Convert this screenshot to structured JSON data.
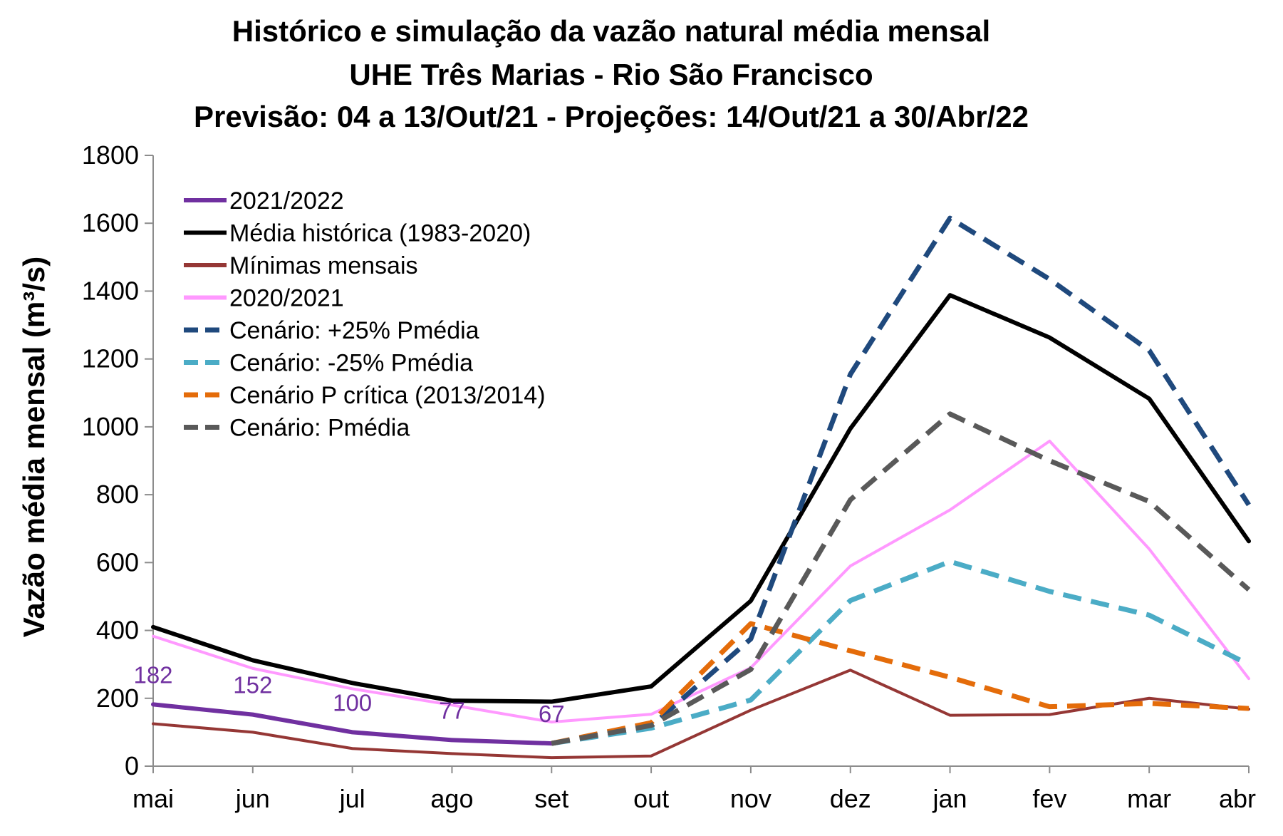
{
  "chart_data": {
    "type": "line",
    "title": [
      "Histórico e simulação da vazão natural média mensal",
      "UHE Três Marias - Rio São Francisco",
      "Previsão: 04 a 13/Out/21 - Projeções: 14/Out/21 a 30/Abr/22"
    ],
    "ylabel": "Vazão média mensal (m³/s)",
    "xlabel": "",
    "ylim": [
      0,
      1800
    ],
    "yticks": [
      0,
      200,
      400,
      600,
      800,
      1000,
      1200,
      1400,
      1600,
      1800
    ],
    "categories": [
      "mai",
      "jun",
      "jul",
      "ago",
      "set",
      "out",
      "nov",
      "dez",
      "jan",
      "fev",
      "mar",
      "abr"
    ],
    "legend_position": "top-left",
    "series": [
      {
        "name": "2021/2022",
        "color": "#7030A0",
        "dash": false,
        "width": 6,
        "values": [
          182,
          152,
          100,
          77,
          67,
          null,
          null,
          null,
          null,
          null,
          null,
          null
        ],
        "labels": [
          "182",
          "152",
          "100",
          "77",
          "67"
        ]
      },
      {
        "name": "Média histórica (1983-2020)",
        "color": "#000000",
        "dash": false,
        "width": 6,
        "values": [
          410,
          312,
          245,
          193,
          190,
          235,
          487,
          995,
          1388,
          1263,
          1083,
          663
        ]
      },
      {
        "name": "Mínimas mensais",
        "color": "#953735",
        "dash": false,
        "width": 4,
        "values": [
          125,
          100,
          52,
          37,
          25,
          30,
          165,
          283,
          150,
          152,
          200,
          168
        ]
      },
      {
        "name": "2020/2021",
        "color": "#FF99FF",
        "dash": false,
        "width": 4,
        "values": [
          383,
          288,
          228,
          180,
          130,
          153,
          290,
          590,
          755,
          958,
          640,
          258
        ]
      },
      {
        "name": "Cenário: +25% Pmédia",
        "color": "#1F497D",
        "dash": true,
        "width": 7,
        "values": [
          null,
          null,
          null,
          null,
          67,
          118,
          375,
          1155,
          1615,
          1435,
          1225,
          770
        ]
      },
      {
        "name": "Cenário: -25% Pmédia",
        "color": "#4BACC6",
        "dash": true,
        "width": 7,
        "values": [
          null,
          null,
          null,
          null,
          67,
          112,
          195,
          488,
          603,
          515,
          445,
          300
        ]
      },
      {
        "name": "Cenário P crítica (2013/2014)",
        "color": "#E46C0A",
        "dash": true,
        "width": 7,
        "values": [
          null,
          null,
          null,
          null,
          67,
          128,
          420,
          340,
          262,
          175,
          185,
          170
        ]
      },
      {
        "name": "Cenário: Pmédia",
        "color": "#595959",
        "dash": true,
        "width": 7,
        "values": [
          null,
          null,
          null,
          null,
          67,
          120,
          285,
          785,
          1038,
          900,
          780,
          520
        ]
      }
    ]
  }
}
